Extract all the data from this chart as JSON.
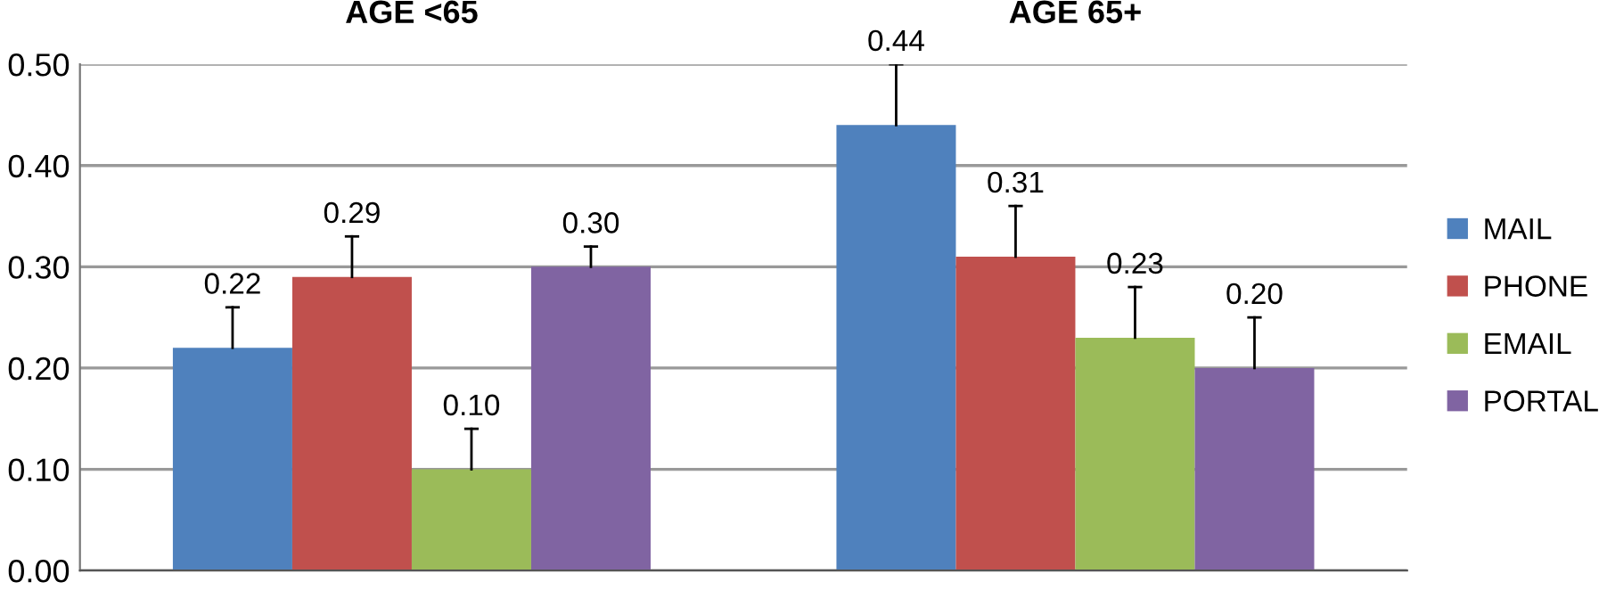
{
  "chart_data": {
    "type": "bar",
    "categories": [
      "AGE <65",
      "AGE 65+"
    ],
    "ylim": [
      0,
      0.5
    ],
    "yticks": [
      {
        "value": 0,
        "label": "0.00"
      },
      {
        "value": 0.1,
        "label": "0.10"
      },
      {
        "value": 0.2,
        "label": "0.20"
      },
      {
        "value": 0.3,
        "label": "0.30"
      },
      {
        "value": 0.4,
        "label": "0.40"
      },
      {
        "value": 0.5,
        "label": "0.50"
      }
    ],
    "grid": "y",
    "legend": "right",
    "series": [
      {
        "name": "MAIL",
        "color": "#4f81bd",
        "values": [
          0.22,
          0.44
        ],
        "value_labels": [
          "0.22",
          "0.44"
        ],
        "errors": [
          [
            0.22,
            0.26
          ],
          [
            0.44,
            0.5
          ]
        ]
      },
      {
        "name": "PHONE",
        "color": "#c0504d",
        "values": [
          0.29,
          0.31
        ],
        "value_labels": [
          "0.29",
          "0.31"
        ],
        "errors": [
          [
            0.29,
            0.33
          ],
          [
            0.31,
            0.36
          ]
        ]
      },
      {
        "name": "EMAIL",
        "color": "#9bbb59",
        "values": [
          0.1,
          0.23
        ],
        "value_labels": [
          "0.10",
          "0.23"
        ],
        "errors": [
          [
            0.1,
            0.14
          ],
          [
            0.23,
            0.28
          ]
        ]
      },
      {
        "name": "PORTAL",
        "color": "#8064a2",
        "values": [
          0.3,
          0.2
        ],
        "value_labels": [
          "0.30",
          "0.20"
        ],
        "errors": [
          [
            0.3,
            0.32
          ],
          [
            0.2,
            0.25
          ]
        ]
      }
    ]
  }
}
